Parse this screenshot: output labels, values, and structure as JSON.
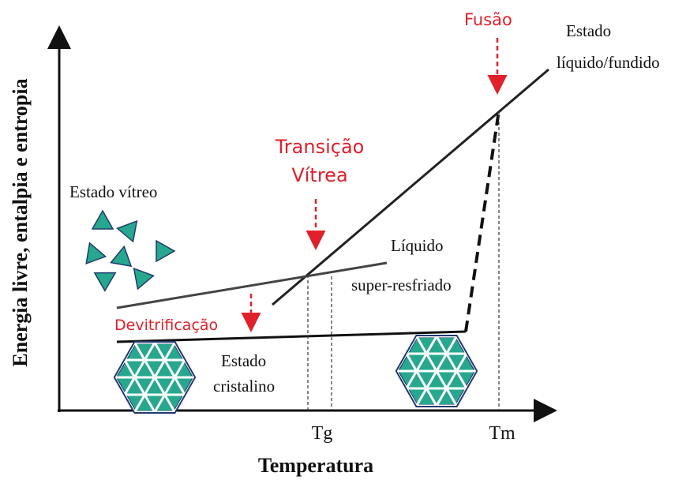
{
  "axes": {
    "y_label": "Energia livre, entalpia e entropia",
    "x_label": "Temperatura"
  },
  "ticks": [
    "Tg",
    "Tm"
  ],
  "annotations": {
    "fusion": "Fusão",
    "liquid_state": [
      "Estado",
      "líquido/fundido"
    ],
    "glass_transition": [
      "Transição",
      "Vítrea"
    ],
    "glassy_state": "Estado vítreo",
    "supercooled": [
      "Líquido",
      "super-resfriado"
    ],
    "devitrification": "Devitrificação",
    "crystalline": [
      "Estado",
      "cristalino"
    ]
  }
}
